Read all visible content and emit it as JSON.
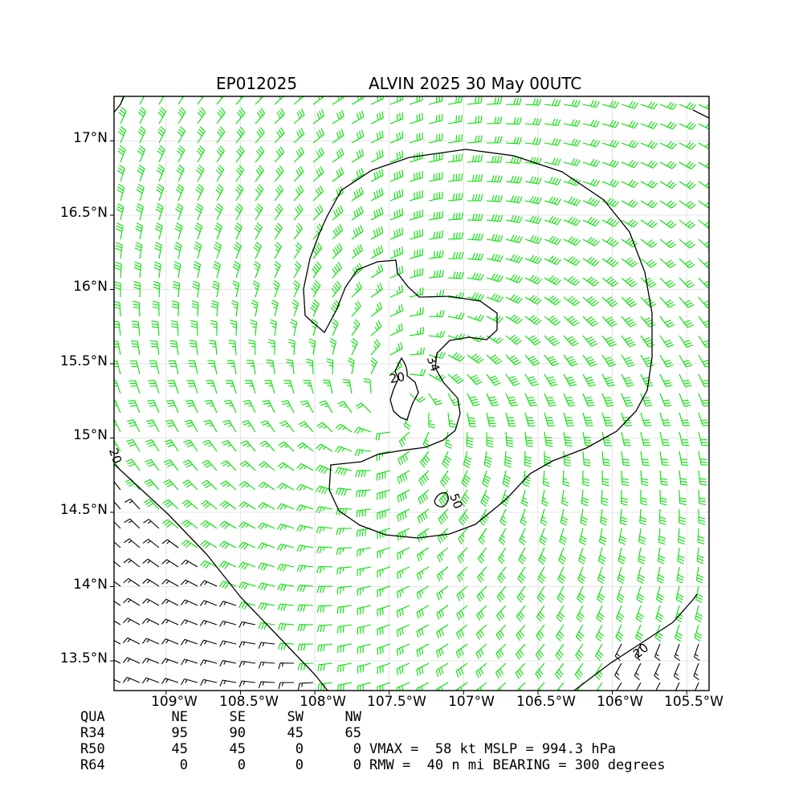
{
  "title": {
    "storm_id": "EP012025",
    "storm_label": "ALVIN 2025 30 May 00UTC"
  },
  "map": {
    "lon_range": [
      -109.35,
      -105.35
    ],
    "lat_range": [
      13.3,
      17.3
    ],
    "lon_ticks": [
      {
        "value": -109.0,
        "label": "109°W"
      },
      {
        "value": -108.5,
        "label": "108.5°W"
      },
      {
        "value": -108.0,
        "label": "108°W"
      },
      {
        "value": -107.5,
        "label": "107.5°W"
      },
      {
        "value": -107.0,
        "label": "107°W"
      },
      {
        "value": -106.5,
        "label": "106.5°W"
      },
      {
        "value": -106.0,
        "label": "106°W"
      },
      {
        "value": -105.5,
        "label": "105.5°W"
      }
    ],
    "lat_ticks": [
      {
        "value": 17.0,
        "label": "17°N"
      },
      {
        "value": 16.5,
        "label": "16.5°N"
      },
      {
        "value": 16.0,
        "label": "16°N"
      },
      {
        "value": 15.5,
        "label": "15.5°N"
      },
      {
        "value": 15.0,
        "label": "15°N"
      },
      {
        "value": 14.5,
        "label": "14.5°N"
      },
      {
        "value": 14.0,
        "label": "14°N"
      },
      {
        "value": 13.5,
        "label": "13.5°N"
      }
    ],
    "grid": true,
    "storm_center": {
      "lon": -107.45,
      "lat": 15.25
    },
    "contour_labels": [
      "20",
      "34",
      "50",
      "20",
      "20"
    ],
    "barb_colors": {
      "below_34": "#000000",
      "34_to_50": "#00e000",
      "50_to_64": "#f0b800",
      "above_64": "#ff6600"
    }
  },
  "wind_radii": {
    "header": [
      "QUA",
      "NE",
      "SE",
      "SW",
      "NW"
    ],
    "rows": [
      {
        "label": "R34",
        "values": [
          "95",
          "90",
          "45",
          "65"
        ]
      },
      {
        "label": "R50",
        "values": [
          "45",
          "45",
          "0",
          "0"
        ]
      },
      {
        "label": "R64",
        "values": [
          "0",
          "0",
          "0",
          "0"
        ]
      }
    ]
  },
  "stats": {
    "line1": "VMAX =  58 kt MSLP = 994.3 hPa",
    "line2": "RMW =  40 n mi BEARING = 300 degrees"
  }
}
